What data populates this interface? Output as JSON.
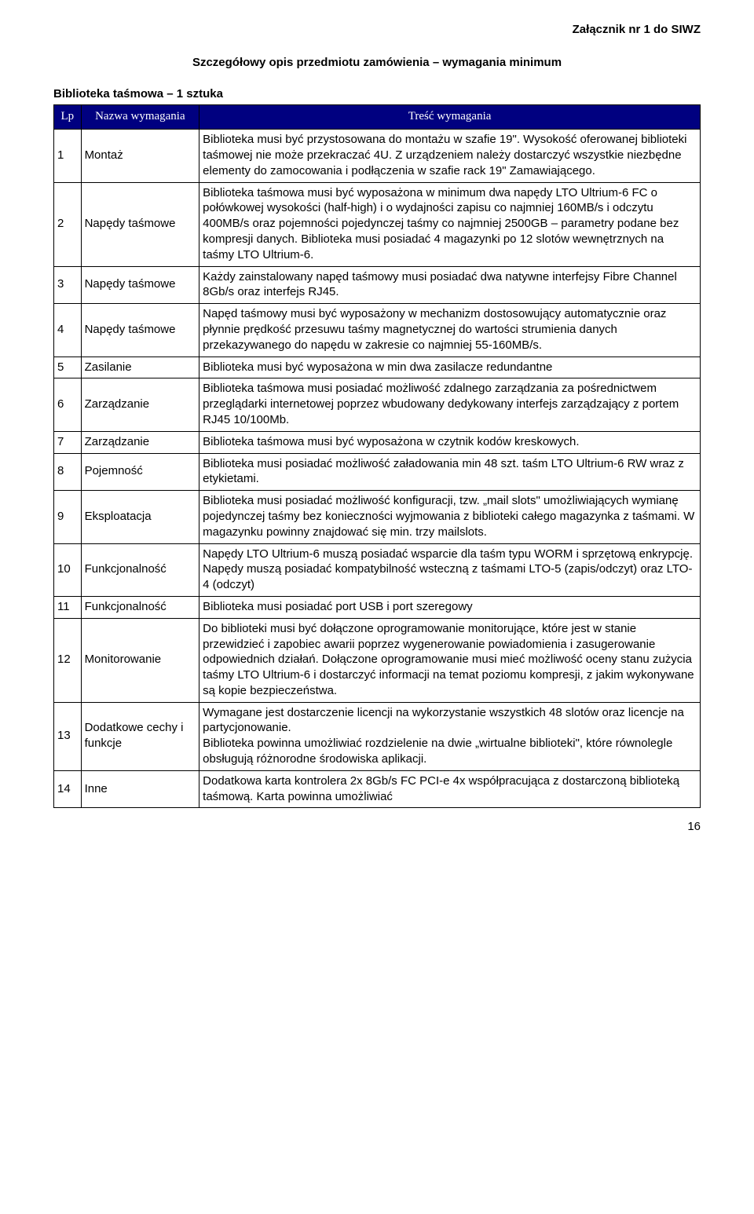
{
  "attachment_label": "Załącznik nr 1 do SIWZ",
  "main_title": "Szczegółowy opis przedmiotu zamówienia – wymagania minimum",
  "subtitle": "Biblioteka taśmowa – 1 sztuka",
  "page_number": "16",
  "table": {
    "headers": {
      "lp": "Lp",
      "name": "Nazwa wymagania",
      "tresc": "Treść wymagania"
    },
    "colors": {
      "header_bg": "#000080",
      "header_fg": "#ffffff",
      "border": "#000000",
      "text": "#000000",
      "bg": "#ffffff"
    },
    "col_widths_pct": [
      4.2,
      18.3,
      77.5
    ],
    "rows": [
      {
        "lp": "1",
        "name": "Montaż",
        "tresc": "Biblioteka musi być przystosowana do montażu w szafie 19\". Wysokość oferowanej biblioteki taśmowej nie może przekraczać 4U. Z urządzeniem należy dostarczyć wszystkie niezbędne elementy do zamocowania i podłączenia w szafie rack 19\" Zamawiającego."
      },
      {
        "lp": "2",
        "name": "Napędy taśmowe",
        "tresc": "Biblioteka taśmowa musi być wyposażona w minimum dwa napędy LTO Ultrium-6 FC o połówkowej wysokości (half-high) i o wydajności zapisu co najmniej 160MB/s i odczytu 400MB/s oraz pojemności pojedynczej taśmy co najmniej 2500GB – parametry podane bez kompresji danych. Biblioteka musi posiadać 4 magazynki po 12 slotów wewnętrznych na taśmy LTO Ultrium-6."
      },
      {
        "lp": "3",
        "name": "Napędy taśmowe",
        "tresc": "Każdy zainstalowany napęd taśmowy musi posiadać dwa natywne interfejsy Fibre Channel 8Gb/s oraz interfejs RJ45."
      },
      {
        "lp": "4",
        "name": "Napędy taśmowe",
        "tresc": "Napęd taśmowy musi być wyposażony w mechanizm dostosowujący automatycznie oraz płynnie prędkość przesuwu taśmy magnetycznej do wartości strumienia danych przekazywanego do napędu w zakresie co najmniej 55-160MB/s."
      },
      {
        "lp": "5",
        "name": "Zasilanie",
        "tresc": "Biblioteka musi być wyposażona w min dwa zasilacze redundantne"
      },
      {
        "lp": "6",
        "name": "Zarządzanie",
        "tresc": "Biblioteka taśmowa musi posiadać możliwość zdalnego zarządzania za pośrednictwem przeglądarki internetowej poprzez wbudowany dedykowany interfejs zarządzający z portem RJ45 10/100Mb."
      },
      {
        "lp": "7",
        "name": "Zarządzanie",
        "tresc": "Biblioteka taśmowa musi być wyposażona w czytnik kodów kreskowych."
      },
      {
        "lp": "8",
        "name": "Pojemność",
        "tresc": "Biblioteka musi posiadać możliwość załadowania min 48 szt. taśm LTO Ultrium-6 RW wraz z etykietami."
      },
      {
        "lp": "9",
        "name": "Eksploatacja",
        "tresc": "Biblioteka musi posiadać możliwość konfiguracji, tzw. „mail slots\" umożliwiających wymianę pojedynczej taśmy bez konieczności wyjmowania z biblioteki całego magazynka z taśmami. W magazynku powinny znajdować się min. trzy mailslots."
      },
      {
        "lp": "10",
        "name": "Funkcjonalność",
        "tresc": "Napędy LTO Ultrium-6 muszą posiadać wsparcie dla taśm typu WORM i sprzętową enkrypcję. Napędy muszą posiadać kompatybilność wsteczną z taśmami LTO-5 (zapis/odczyt) oraz LTO-4 (odczyt)"
      },
      {
        "lp": "11",
        "name": "Funkcjonalność",
        "tresc": "Biblioteka musi posiadać port USB i port szeregowy"
      },
      {
        "lp": "12",
        "name": "Monitorowanie",
        "tresc": "Do biblioteki musi być dołączone oprogramowanie monitorujące, które jest w stanie przewidzieć i zapobiec awarii poprzez wygenerowanie powiadomienia i zasugerowanie odpowiednich działań. Dołączone oprogramowanie musi mieć możliwość oceny stanu zużycia taśmy LTO Ultrium-6 i dostarczyć informacji na temat poziomu kompresji, z jakim wykonywane są kopie bezpieczeństwa."
      },
      {
        "lp": "13",
        "name": "Dodatkowe cechy i funkcje",
        "tresc": "Wymagane jest dostarczenie licencji na wykorzystanie wszystkich 48 slotów oraz  licencje na partycjonowanie.\nBiblioteka powinna umożliwiać rozdzielenie na dwie „wirtualne biblioteki\", które równolegle obsługują różnorodne środowiska aplikacji."
      },
      {
        "lp": "14",
        "name": "Inne",
        "tresc": "Dodatkowa karta kontrolera 2x 8Gb/s FC PCI-e 4x współpracująca z dostarczoną biblioteką taśmową. Karta powinna umożliwiać"
      }
    ]
  }
}
